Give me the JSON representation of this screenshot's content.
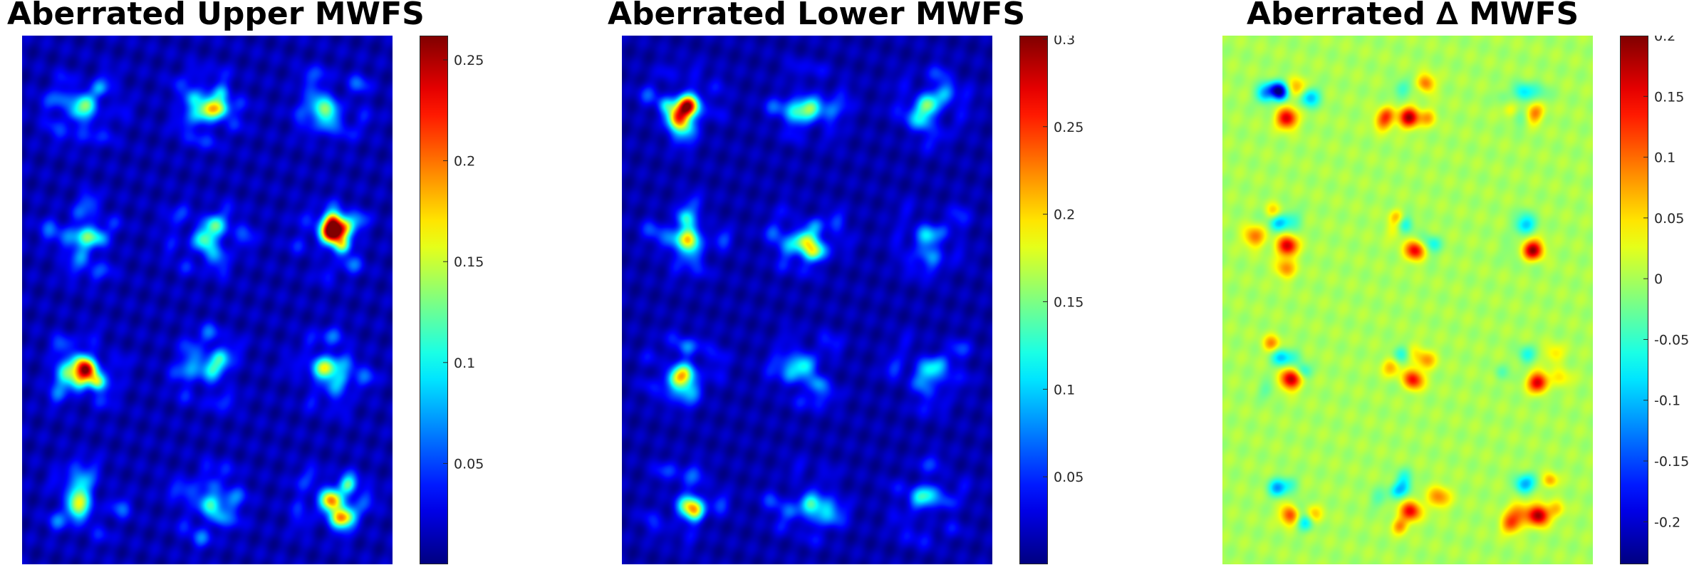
{
  "chart_data": [
    {
      "type": "heatmap",
      "title": "Aberrated Upper MWFS",
      "grid": {
        "rows": 4,
        "cols": 3
      },
      "clim": [
        0.0,
        0.262
      ],
      "background": 0.012,
      "colorbar_ticks": [
        0.05,
        0.1,
        0.15,
        0.2,
        0.25
      ],
      "colorbar_tick_labels": [
        "0.05",
        "0.1",
        "0.15",
        "0.2",
        "0.25"
      ],
      "spots": [
        {
          "row": 0,
          "col": 0,
          "peak": 0.12
        },
        {
          "row": 0,
          "col": 1,
          "peak": 0.17
        },
        {
          "row": 0,
          "col": 2,
          "peak": 0.11
        },
        {
          "row": 1,
          "col": 0,
          "peak": 0.12
        },
        {
          "row": 1,
          "col": 1,
          "peak": 0.12
        },
        {
          "row": 1,
          "col": 2,
          "peak": 0.25
        },
        {
          "row": 2,
          "col": 0,
          "peak": 0.24
        },
        {
          "row": 2,
          "col": 1,
          "peak": 0.1
        },
        {
          "row": 2,
          "col": 2,
          "peak": 0.13
        },
        {
          "row": 3,
          "col": 0,
          "peak": 0.12
        },
        {
          "row": 3,
          "col": 1,
          "peak": 0.11
        },
        {
          "row": 3,
          "col": 2,
          "peak": 0.2
        }
      ]
    },
    {
      "type": "heatmap",
      "title": "Aberrated Lower MWFS",
      "grid": {
        "rows": 4,
        "cols": 3
      },
      "clim": [
        0.0,
        0.302
      ],
      "background": 0.012,
      "colorbar_ticks": [
        0.05,
        0.1,
        0.15,
        0.2,
        0.25,
        0.3
      ],
      "colorbar_tick_labels": [
        "0.05",
        "0.1",
        "0.15",
        "0.2",
        "0.25",
        "0.3"
      ],
      "spots": [
        {
          "row": 0,
          "col": 0,
          "peak": 0.29
        },
        {
          "row": 0,
          "col": 1,
          "peak": 0.14
        },
        {
          "row": 0,
          "col": 2,
          "peak": 0.15
        },
        {
          "row": 1,
          "col": 0,
          "peak": 0.18
        },
        {
          "row": 1,
          "col": 1,
          "peak": 0.17
        },
        {
          "row": 1,
          "col": 2,
          "peak": 0.11
        },
        {
          "row": 2,
          "col": 0,
          "peak": 0.16
        },
        {
          "row": 2,
          "col": 1,
          "peak": 0.12
        },
        {
          "row": 2,
          "col": 2,
          "peak": 0.11
        },
        {
          "row": 3,
          "col": 0,
          "peak": 0.15
        },
        {
          "row": 3,
          "col": 1,
          "peak": 0.13
        },
        {
          "row": 3,
          "col": 2,
          "peak": 0.1
        }
      ]
    },
    {
      "type": "heatmap",
      "title": "Aberrated ∆ MWFS",
      "grid": {
        "rows": 4,
        "cols": 3
      },
      "clim": [
        -0.235,
        0.2
      ],
      "background": 0.0,
      "colorbar_ticks": [
        -0.2,
        -0.15,
        -0.1,
        -0.05,
        0,
        0.05,
        0.1,
        0.15,
        0.2
      ],
      "colorbar_tick_labels": [
        "-0.2",
        "-0.15",
        "-0.1",
        "-0.05",
        "0",
        "0.05",
        "0.1",
        "0.15",
        "0.2"
      ],
      "spots": [
        {
          "row": 0,
          "col": 0,
          "peak": 0.17,
          "trough": -0.23
        },
        {
          "row": 0,
          "col": 1,
          "peak": 0.18,
          "trough": -0.05
        },
        {
          "row": 0,
          "col": 2,
          "peak": 0.12,
          "trough": -0.08
        },
        {
          "row": 1,
          "col": 0,
          "peak": 0.17,
          "trough": -0.09
        },
        {
          "row": 1,
          "col": 1,
          "peak": 0.17,
          "trough": -0.08
        },
        {
          "row": 1,
          "col": 2,
          "peak": 0.2,
          "trough": -0.06
        },
        {
          "row": 2,
          "col": 0,
          "peak": 0.18,
          "trough": -0.09
        },
        {
          "row": 2,
          "col": 1,
          "peak": 0.15,
          "trough": -0.07
        },
        {
          "row": 2,
          "col": 2,
          "peak": 0.17,
          "trough": -0.06
        },
        {
          "row": 3,
          "col": 0,
          "peak": 0.14,
          "trough": -0.11
        },
        {
          "row": 3,
          "col": 1,
          "peak": 0.15,
          "trough": -0.08
        },
        {
          "row": 3,
          "col": 2,
          "peak": 0.19,
          "trough": -0.08
        }
      ]
    }
  ]
}
